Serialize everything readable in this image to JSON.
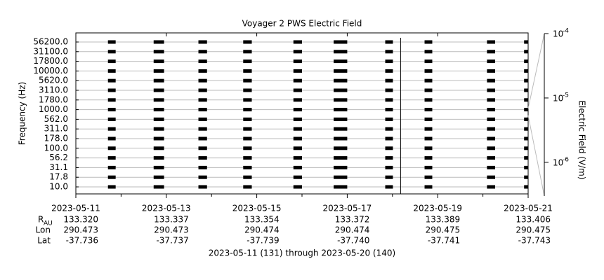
{
  "chart_data": {
    "type": "spectrogram",
    "title": "Voyager 2 PWS Electric Field",
    "y_label": "Frequency (Hz)",
    "categories": [
      "10.0",
      "17.8",
      "31.1",
      "56.2",
      "100.0",
      "178.0",
      "311.0",
      "562.0",
      "1000.0",
      "1780.0",
      "3110.0",
      "5620.0",
      "10000.0",
      "17800.0",
      "31100.0",
      "56200.0"
    ],
    "xlim": [
      131,
      141
    ],
    "xticks": [
      {
        "value": 131,
        "label": "2023-05-11"
      },
      {
        "value": 133,
        "label": "2023-05-13"
      },
      {
        "value": 135,
        "label": "2023-05-15"
      },
      {
        "value": 137,
        "label": "2023-05-17"
      },
      {
        "value": 139,
        "label": "2023-05-19"
      },
      {
        "value": 141,
        "label": "2023-05-21"
      }
    ],
    "segments": [
      {
        "start": 131.71,
        "end": 131.88
      },
      {
        "start": 132.72,
        "end": 132.95
      },
      {
        "start": 133.71,
        "end": 133.9
      },
      {
        "start": 134.7,
        "end": 134.89
      },
      {
        "start": 135.81,
        "end": 136.0
      },
      {
        "start": 136.7,
        "end": 137.0
      },
      {
        "start": 137.84,
        "end": 138.01
      },
      {
        "start": 138.71,
        "end": 138.88
      },
      {
        "start": 140.09,
        "end": 140.27
      },
      {
        "start": 140.91,
        "end": 141.0
      }
    ],
    "vlines": [
      138.18
    ],
    "color": "#000000",
    "grid": true,
    "ephemeris": [
      {
        "name": "R",
        "subscript": "AU",
        "values": [
          "133.320",
          "133.337",
          "133.354",
          "133.372",
          "133.389",
          "133.406"
        ]
      },
      {
        "name": "Lon",
        "values": [
          "290.473",
          "290.473",
          "290.474",
          "290.474",
          "290.475",
          "290.475"
        ]
      },
      {
        "name": "Lat",
        "values": [
          "-37.736",
          "-37.737",
          "-37.739",
          "-37.740",
          "-37.741",
          "-37.743"
        ]
      }
    ],
    "footer": "2023-05-11 (131) through 2023-05-20 (140)",
    "colorbar": {
      "label": "Electric Field (V/m)",
      "log": true,
      "zlim": [
        3e-07,
        0.0001
      ],
      "ticks": [
        {
          "value": 0.0001,
          "label": "10",
          "exponent": "-4"
        },
        {
          "value": 1e-05,
          "label": "10",
          "exponent": "-5"
        },
        {
          "value": 1e-06,
          "label": "10",
          "exponent": "-6"
        }
      ]
    }
  }
}
